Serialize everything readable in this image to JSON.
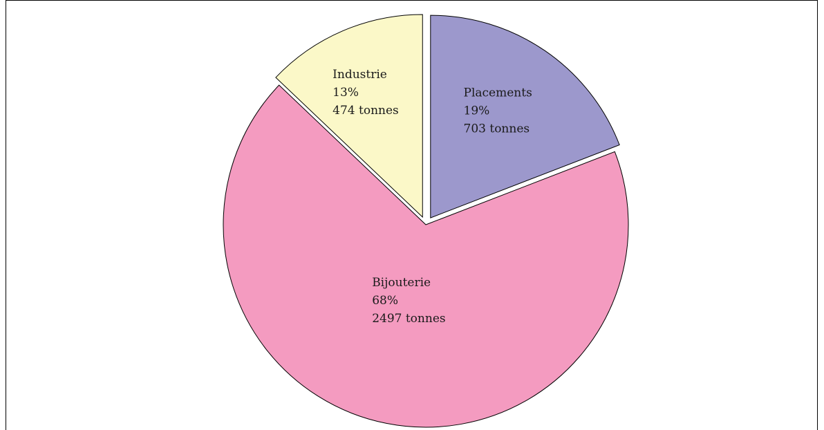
{
  "chart_data": {
    "type": "pie",
    "title": "",
    "slices": [
      {
        "label": "Placements",
        "value": 703,
        "percent": "19%",
        "amount": "703 tonnes",
        "color": "#9c98cc",
        "exploded": true
      },
      {
        "label": "Bijouterie",
        "value": 2497,
        "percent": "68%",
        "amount": "2497 tonnes",
        "color": "#f49bc0",
        "exploded": false
      },
      {
        "label": "Industrie",
        "value": 474,
        "percent": "13%",
        "amount": "474 tonnes",
        "color": "#fbf8c8",
        "exploded": true
      }
    ],
    "legend": "none"
  }
}
